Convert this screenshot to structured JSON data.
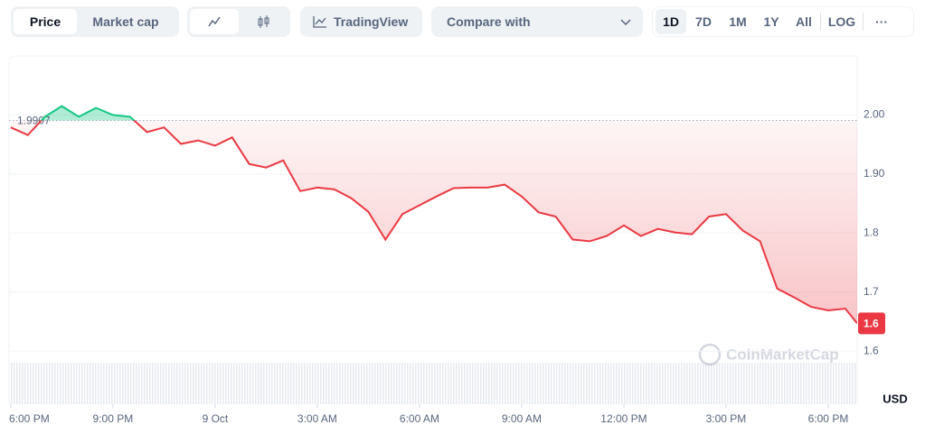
{
  "toolbar": {
    "price": "Price",
    "market_cap": "Market cap",
    "tradingview": "TradingView",
    "compare": "Compare with",
    "ranges": [
      "1D",
      "7D",
      "1M",
      "1Y",
      "All"
    ],
    "log": "LOG",
    "more": "···"
  },
  "chart_data": {
    "type": "line",
    "unit": "USD",
    "watermark": "CoinMarketCap",
    "x": [
      0,
      0.5,
      1,
      1.5,
      2,
      2.5,
      3,
      3.5,
      4,
      4.5,
      5,
      5.5,
      6,
      6.5,
      7,
      7.5,
      8,
      8.5,
      9,
      9.5,
      10,
      10.5,
      11,
      11.5,
      12,
      12.5,
      13,
      13.5,
      14,
      14.5,
      15,
      15.5,
      16,
      16.5,
      17,
      17.5,
      18,
      18.5,
      19,
      19.5,
      20,
      20.5,
      21,
      21.5,
      22,
      22.5,
      23,
      23.5,
      24,
      24.5,
      24.85
    ],
    "series": [
      {
        "name": "Price",
        "color": "#ea3943",
        "above_color": "#16c784",
        "values": [
          1.979,
          1.966,
          1.997,
          2.015,
          1.997,
          2.012,
          2.0,
          1.997,
          1.971,
          1.979,
          1.951,
          1.957,
          1.948,
          1.962,
          1.917,
          1.911,
          1.923,
          1.871,
          1.877,
          1.874,
          1.859,
          1.836,
          1.789,
          1.832,
          1.847,
          1.862,
          1.876,
          1.877,
          1.877,
          1.882,
          1.862,
          1.835,
          1.828,
          1.789,
          1.786,
          1.795,
          1.813,
          1.795,
          1.807,
          1.801,
          1.798,
          1.828,
          1.832,
          1.804,
          1.786,
          1.706,
          1.691,
          1.675,
          1.669,
          1.672,
          1.647
        ]
      }
    ],
    "baseline": 1.9907,
    "last_price_label": "1.6",
    "xlim": [
      -0.05,
      24.85
    ],
    "xticks": [
      {
        "value": 0,
        "label": "6:00 PM"
      },
      {
        "value": 3,
        "label": "9:00 PM"
      },
      {
        "value": 6,
        "label": "9 Oct"
      },
      {
        "value": 9,
        "label": "3:00 AM"
      },
      {
        "value": 12,
        "label": "6:00 AM"
      },
      {
        "value": 15,
        "label": "9:00 AM"
      },
      {
        "value": 18,
        "label": "12:00 PM"
      },
      {
        "value": 21,
        "label": "3:00 PM"
      },
      {
        "value": 24,
        "label": "6:00 PM"
      }
    ],
    "ylim": [
      1.51,
      2.1
    ],
    "yticks": [
      1.6,
      1.7,
      1.8,
      {
        "value": 1.9,
        "label": "1.90"
      },
      {
        "value": 2,
        "label": "2.00"
      }
    ],
    "grid": true
  }
}
